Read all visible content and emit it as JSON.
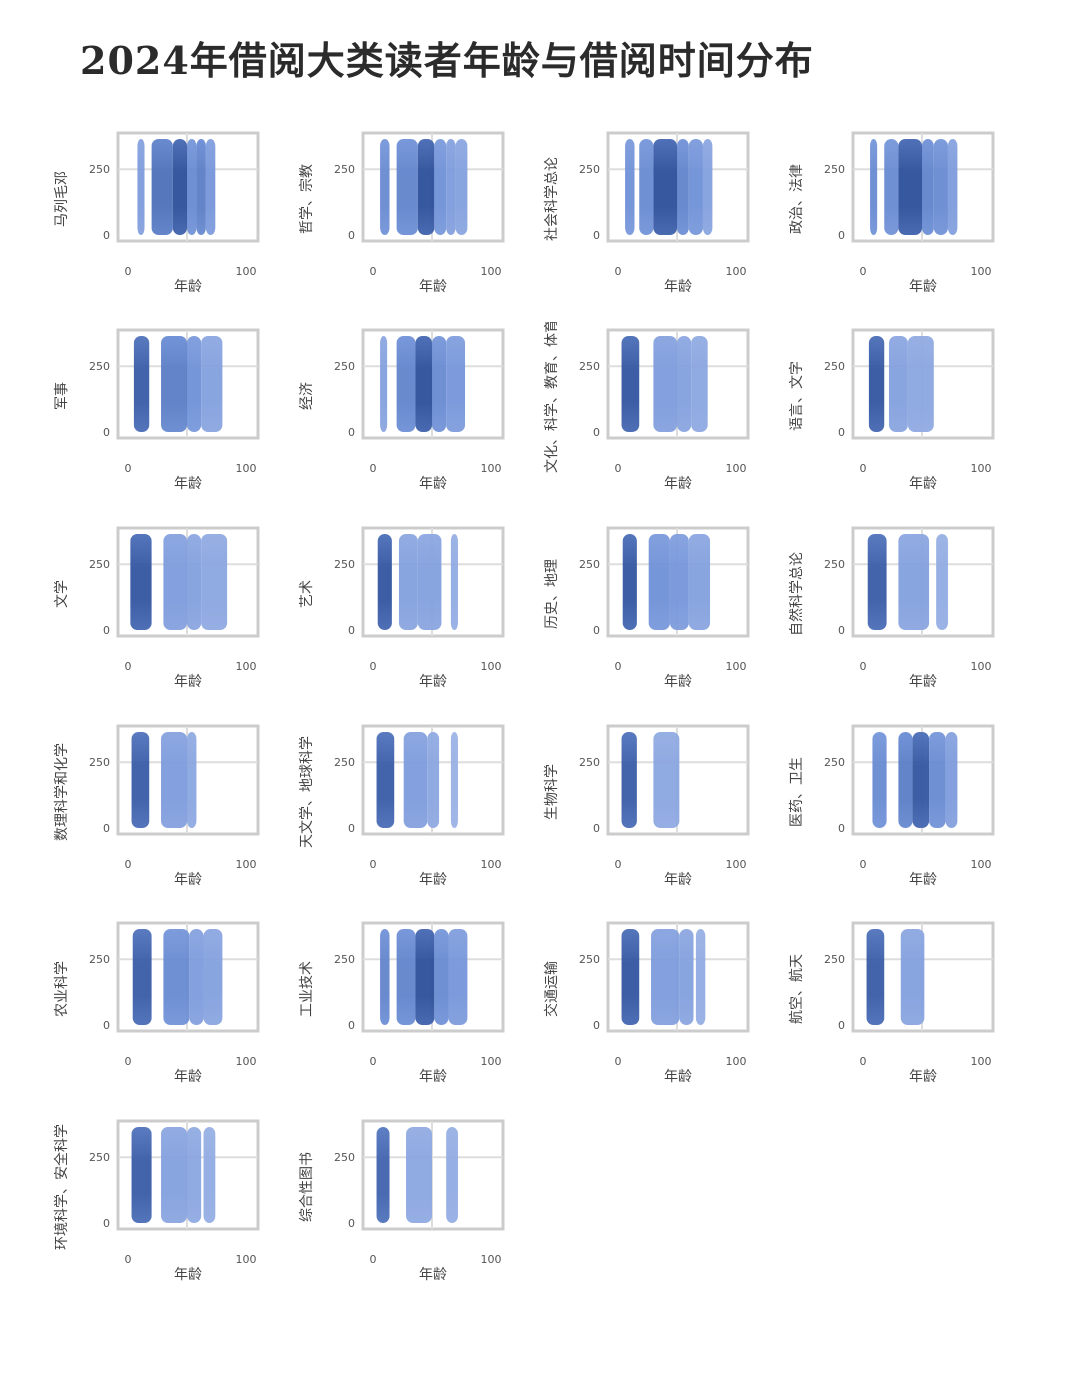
{
  "title": "2024年借阅大类读者年龄与借阅时间分布",
  "common": {
    "xlabel": "年龄",
    "xticks": [
      "0",
      "100"
    ],
    "yticks": [
      "0",
      "250"
    ]
  },
  "colors": {
    "low": "#b3c4ec",
    "mid": "#6f91d8",
    "high": "#2c4f9a",
    "frame": "#cccccc",
    "grid": "#dddddd"
  },
  "chart_data": [
    {
      "type": "heatmap",
      "title": "马列毛邓",
      "xlabel": "年龄",
      "ylabel": "",
      "xlim": [
        0,
        100
      ],
      "ylim": [
        0,
        365
      ],
      "series": [
        {
          "name": "",
          "values": [
            [
              8,
              14,
              0.4
            ],
            [
              20,
              38,
              0.75
            ],
            [
              38,
              50,
              1.0
            ],
            [
              50,
              58,
              0.55
            ],
            [
              58,
              66,
              0.65
            ],
            [
              66,
              74,
              0.45
            ]
          ]
        }
      ]
    },
    {
      "type": "heatmap",
      "title": "哲学、宗教",
      "xlabel": "年龄",
      "ylabel": "",
      "xlim": [
        0,
        100
      ],
      "ylim": [
        0,
        365
      ],
      "series": [
        {
          "name": "",
          "values": [
            [
              6,
              14,
              0.55
            ],
            [
              20,
              38,
              0.6
            ],
            [
              38,
              52,
              1.0
            ],
            [
              52,
              62,
              0.5
            ],
            [
              62,
              70,
              0.4
            ],
            [
              70,
              80,
              0.35
            ]
          ]
        }
      ]
    },
    {
      "type": "heatmap",
      "title": "社会科学总论",
      "xlabel": "年龄",
      "ylabel": "",
      "xlim": [
        0,
        100
      ],
      "ylim": [
        0,
        365
      ],
      "series": [
        {
          "name": "",
          "values": [
            [
              6,
              14,
              0.5
            ],
            [
              18,
              30,
              0.55
            ],
            [
              30,
              50,
              1.0
            ],
            [
              50,
              60,
              0.6
            ],
            [
              60,
              72,
              0.5
            ],
            [
              72,
              80,
              0.35
            ]
          ]
        }
      ]
    },
    {
      "type": "heatmap",
      "title": "政治、法律",
      "xlabel": "年龄",
      "ylabel": "",
      "xlim": [
        0,
        100
      ],
      "ylim": [
        0,
        365
      ],
      "series": [
        {
          "name": "",
          "values": [
            [
              6,
              12,
              0.55
            ],
            [
              18,
              30,
              0.55
            ],
            [
              30,
              50,
              1.0
            ],
            [
              50,
              60,
              0.6
            ],
            [
              60,
              72,
              0.55
            ],
            [
              72,
              80,
              0.4
            ]
          ]
        }
      ]
    },
    {
      "type": "heatmap",
      "title": "军事",
      "xlabel": "年龄",
      "ylabel": "",
      "xlim": [
        0,
        100
      ],
      "ylim": [
        0,
        365
      ],
      "series": [
        {
          "name": "",
          "values": [
            [
              5,
              18,
              0.9
            ],
            [
              28,
              50,
              0.65
            ],
            [
              50,
              62,
              0.5
            ],
            [
              62,
              80,
              0.35
            ]
          ]
        }
      ]
    },
    {
      "type": "heatmap",
      "title": "经济",
      "xlabel": "年龄",
      "ylabel": "",
      "xlim": [
        0,
        100
      ],
      "ylim": [
        0,
        365
      ],
      "series": [
        {
          "name": "",
          "values": [
            [
              6,
              12,
              0.35
            ],
            [
              20,
              36,
              0.6
            ],
            [
              36,
              50,
              1.0
            ],
            [
              50,
              62,
              0.55
            ],
            [
              62,
              78,
              0.45
            ]
          ]
        }
      ]
    },
    {
      "type": "heatmap",
      "title": "文化、科学、教育、体育",
      "xlabel": "年龄",
      "ylabel": "",
      "xlim": [
        0,
        100
      ],
      "ylim": [
        0,
        365
      ],
      "series": [
        {
          "name": "",
          "values": [
            [
              3,
              18,
              0.95
            ],
            [
              30,
              50,
              0.4
            ],
            [
              50,
              62,
              0.35
            ],
            [
              62,
              76,
              0.3
            ]
          ]
        }
      ]
    },
    {
      "type": "heatmap",
      "title": "语言、文字",
      "xlabel": "年龄",
      "ylabel": "",
      "xlim": [
        0,
        100
      ],
      "ylim": [
        0,
        365
      ],
      "series": [
        {
          "name": "",
          "values": [
            [
              5,
              18,
              0.95
            ],
            [
              22,
              38,
              0.35
            ],
            [
              38,
              60,
              0.3
            ]
          ]
        }
      ]
    },
    {
      "type": "heatmap",
      "title": "文学",
      "xlabel": "年龄",
      "ylabel": "",
      "xlim": [
        0,
        100
      ],
      "ylim": [
        0,
        365
      ],
      "series": [
        {
          "name": "",
          "values": [
            [
              2,
              20,
              0.95
            ],
            [
              30,
              50,
              0.4
            ],
            [
              50,
              62,
              0.35
            ],
            [
              62,
              84,
              0.3
            ]
          ]
        }
      ]
    },
    {
      "type": "heatmap",
      "title": "艺术",
      "xlabel": "年龄",
      "ylabel": "",
      "xlim": [
        0,
        100
      ],
      "ylim": [
        0,
        365
      ],
      "series": [
        {
          "name": "",
          "values": [
            [
              4,
              16,
              0.95
            ],
            [
              22,
              38,
              0.35
            ],
            [
              38,
              58,
              0.35
            ],
            [
              66,
              72,
              0.25
            ]
          ]
        }
      ]
    },
    {
      "type": "heatmap",
      "title": "历史、地理",
      "xlabel": "年龄",
      "ylabel": "",
      "xlim": [
        0,
        100
      ],
      "ylim": [
        0,
        365
      ],
      "series": [
        {
          "name": "",
          "values": [
            [
              4,
              16,
              0.95
            ],
            [
              26,
              44,
              0.5
            ],
            [
              44,
              60,
              0.45
            ],
            [
              60,
              78,
              0.35
            ]
          ]
        }
      ]
    },
    {
      "type": "heatmap",
      "title": "自然科学总论",
      "xlabel": "年龄",
      "ylabel": "",
      "xlim": [
        0,
        100
      ],
      "ylim": [
        0,
        365
      ],
      "series": [
        {
          "name": "",
          "values": [
            [
              4,
              20,
              0.9
            ],
            [
              30,
              56,
              0.35
            ],
            [
              62,
              72,
              0.25
            ]
          ]
        }
      ]
    },
    {
      "type": "heatmap",
      "title": "数理科学和化学",
      "xlabel": "年龄",
      "ylabel": "",
      "xlim": [
        0,
        100
      ],
      "ylim": [
        0,
        365
      ],
      "series": [
        {
          "name": "",
          "values": [
            [
              3,
              18,
              0.9
            ],
            [
              28,
              50,
              0.4
            ],
            [
              50,
              58,
              0.3
            ]
          ]
        }
      ]
    },
    {
      "type": "heatmap",
      "title": "天文学、地球科学",
      "xlabel": "年龄",
      "ylabel": "",
      "xlim": [
        0,
        100
      ],
      "ylim": [
        0,
        365
      ],
      "series": [
        {
          "name": "",
          "values": [
            [
              3,
              18,
              0.9
            ],
            [
              26,
              46,
              0.4
            ],
            [
              46,
              56,
              0.3
            ],
            [
              66,
              72,
              0.2
            ]
          ]
        }
      ]
    },
    {
      "type": "heatmap",
      "title": "生物科学",
      "xlabel": "年龄",
      "ylabel": "",
      "xlim": [
        0,
        100
      ],
      "ylim": [
        0,
        365
      ],
      "series": [
        {
          "name": "",
          "values": [
            [
              3,
              16,
              0.9
            ],
            [
              30,
              52,
              0.3
            ]
          ]
        }
      ]
    },
    {
      "type": "heatmap",
      "title": "医药、卫生",
      "xlabel": "年龄",
      "ylabel": "",
      "xlim": [
        0,
        100
      ],
      "ylim": [
        0,
        365
      ],
      "series": [
        {
          "name": "",
          "values": [
            [
              8,
              20,
              0.55
            ],
            [
              30,
              42,
              0.65
            ],
            [
              42,
              56,
              0.95
            ],
            [
              56,
              70,
              0.55
            ],
            [
              70,
              80,
              0.4
            ]
          ]
        }
      ]
    },
    {
      "type": "heatmap",
      "title": "农业科学",
      "xlabel": "年龄",
      "ylabel": "",
      "xlim": [
        0,
        100
      ],
      "ylim": [
        0,
        365
      ],
      "series": [
        {
          "name": "",
          "values": [
            [
              4,
              20,
              0.9
            ],
            [
              30,
              52,
              0.55
            ],
            [
              52,
              64,
              0.4
            ],
            [
              64,
              80,
              0.35
            ]
          ]
        }
      ]
    },
    {
      "type": "heatmap",
      "title": "工业技术",
      "xlabel": "年龄",
      "ylabel": "",
      "xlim": [
        0,
        100
      ],
      "ylim": [
        0,
        365
      ],
      "series": [
        {
          "name": "",
          "values": [
            [
              6,
              14,
              0.6
            ],
            [
              20,
              36,
              0.6
            ],
            [
              36,
              52,
              1.0
            ],
            [
              52,
              64,
              0.55
            ],
            [
              64,
              80,
              0.45
            ]
          ]
        }
      ]
    },
    {
      "type": "heatmap",
      "title": "交通运输",
      "xlabel": "年龄",
      "ylabel": "",
      "xlim": [
        0,
        100
      ],
      "ylim": [
        0,
        365
      ],
      "series": [
        {
          "name": "",
          "values": [
            [
              3,
              18,
              0.95
            ],
            [
              28,
              52,
              0.4
            ],
            [
              52,
              64,
              0.35
            ],
            [
              66,
              74,
              0.25
            ]
          ]
        }
      ]
    },
    {
      "type": "heatmap",
      "title": "航空、航天",
      "xlabel": "年龄",
      "ylabel": "",
      "xlim": [
        0,
        100
      ],
      "ylim": [
        0,
        365
      ],
      "series": [
        {
          "name": "",
          "values": [
            [
              3,
              18,
              0.9
            ],
            [
              32,
              52,
              0.35
            ]
          ]
        }
      ]
    },
    {
      "type": "heatmap",
      "title": "环境科学、安全科学",
      "xlabel": "年龄",
      "ylabel": "",
      "xlim": [
        0,
        100
      ],
      "ylim": [
        0,
        365
      ],
      "series": [
        {
          "name": "",
          "values": [
            [
              3,
              20,
              0.9
            ],
            [
              28,
              50,
              0.35
            ],
            [
              50,
              62,
              0.3
            ],
            [
              64,
              74,
              0.25
            ]
          ]
        }
      ]
    },
    {
      "type": "heatmap",
      "title": "综合性图书",
      "xlabel": "年龄",
      "ylabel": "",
      "xlim": [
        0,
        100
      ],
      "ylim": [
        0,
        365
      ],
      "series": [
        {
          "name": "",
          "values": [
            [
              3,
              14,
              0.85
            ],
            [
              28,
              50,
              0.3
            ],
            [
              62,
              72,
              0.25
            ]
          ]
        }
      ]
    }
  ]
}
